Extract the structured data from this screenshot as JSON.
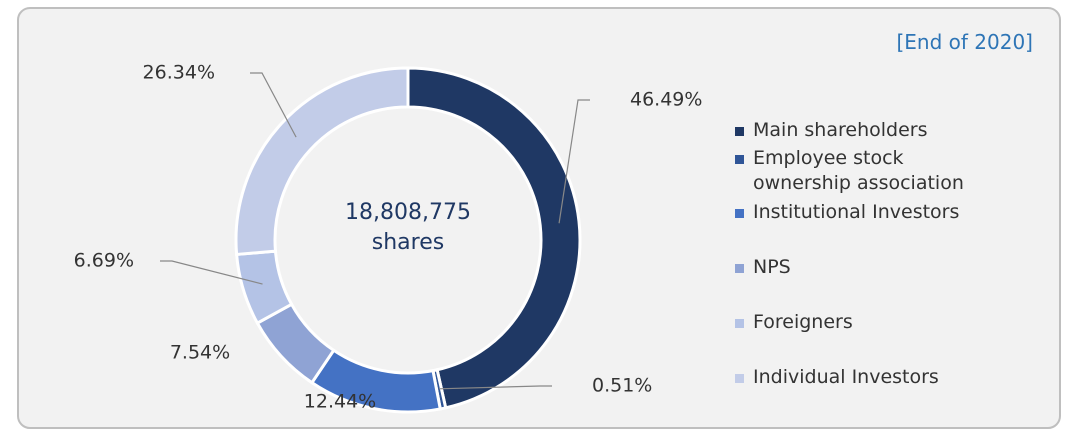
{
  "chart_data": {
    "type": "pie",
    "annotation": "[End of 2020]",
    "center_text": [
      "18,808,775",
      "shares"
    ],
    "categories": [
      "Main shareholders",
      "Employee stock ownership association",
      "Institutional Investors",
      "NPS",
      "Foreigners",
      "Individual Investors"
    ],
    "values": [
      46.49,
      0.51,
      12.44,
      7.54,
      6.69,
      26.34
    ],
    "value_labels": [
      "46.49%",
      "0.51%",
      "12.44%",
      "7.54%",
      "6.69%",
      "26.34%"
    ],
    "colors": [
      "#1f3864",
      "#2f5597",
      "#4472c4",
      "#8fa3d4",
      "#b4c3e6",
      "#c2cce8"
    ]
  }
}
